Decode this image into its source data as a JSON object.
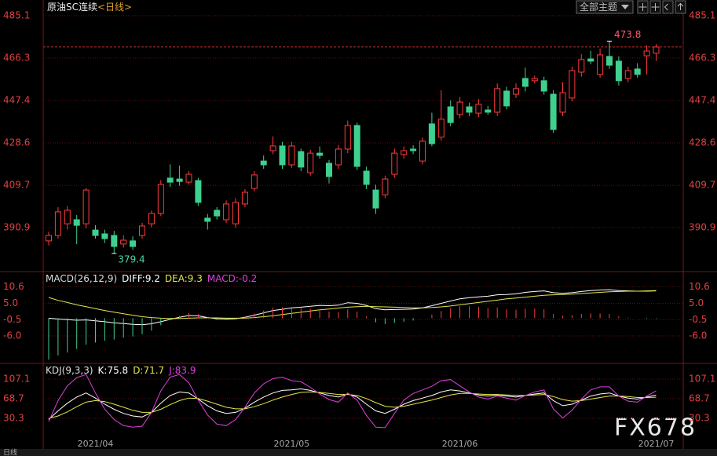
{
  "header": {
    "toolbar_button": "全部主题",
    "watermark": "FX678",
    "period_tab": "日线"
  },
  "chart_data": [
    {
      "type": "candlestick",
      "title": "原油SC连续",
      "subtitle": "<日线>",
      "categories": [
        null,
        null,
        null,
        null,
        null,
        "2021/04",
        null,
        null,
        null,
        null,
        null,
        null,
        null,
        null,
        null,
        null,
        null,
        null,
        null,
        null,
        null,
        null,
        null,
        null,
        null,
        null,
        "2021/05",
        null,
        null,
        null,
        null,
        null,
        null,
        null,
        null,
        null,
        null,
        null,
        null,
        null,
        null,
        null,
        null,
        null,
        "2021/06",
        null,
        null,
        null,
        null,
        null,
        null,
        null,
        null,
        null,
        null,
        null,
        null,
        null,
        null,
        null,
        null,
        null,
        null,
        null,
        null,
        "2021/07"
      ],
      "open": [
        385.0,
        387.4,
        392.6,
        394.4,
        392.6,
        389.8,
        388.1,
        387.4,
        383.6,
        385.0,
        387.4,
        392.6,
        397.2,
        412.9,
        412.5,
        411.1,
        411.8,
        395.1,
        398.6,
        394.4,
        392.6,
        401.4,
        408.3,
        420.5,
        425.1,
        427.2,
        418.8,
        424.7,
        415.3,
        424.0,
        419.5,
        418.8,
        425.8,
        436.3,
        416.0,
        407.6,
        405.5,
        414.6,
        423.4,
        425.8,
        420.5,
        437.0,
        431.1,
        444.6,
        441.2,
        444.6,
        441.8,
        443.2,
        442.2,
        451.6,
        450.2,
        457.2,
        456.2,
        456.2,
        450.2,
        442.2,
        448.5,
        460.0,
        465.9,
        459.0,
        467.0,
        464.9,
        457.2,
        461.4,
        467.3,
        468.4
      ],
      "high": [
        389.0,
        400.0,
        400.5,
        396.5,
        408.5,
        392.0,
        390.0,
        389.5,
        387.5,
        387.0,
        393.0,
        398.5,
        412.0,
        419.0,
        418.5,
        416.0,
        413.0,
        397.0,
        400.0,
        403.0,
        404.0,
        408.0,
        416.0,
        423.0,
        431.5,
        429.0,
        429.0,
        426.0,
        425.5,
        427.0,
        421.0,
        427.5,
        438.5,
        437.5,
        418.0,
        410.0,
        414.0,
        426.0,
        427.0,
        427.5,
        431.0,
        442.0,
        452.0,
        447.5,
        449.0,
        446.5,
        448.0,
        445.0,
        455.0,
        453.5,
        455.0,
        462.0,
        458.5,
        458.0,
        452.0,
        455.5,
        462.5,
        468.0,
        469.5,
        470.5,
        473.8,
        467.0,
        462.5,
        464.0,
        472.0,
        472.5
      ],
      "low": [
        383.0,
        386.0,
        390.0,
        383.5,
        390.5,
        386.0,
        384.0,
        379.4,
        382.0,
        381.0,
        386.0,
        391.0,
        396.0,
        409.0,
        409.5,
        410.0,
        400.5,
        390.0,
        394.5,
        393.0,
        391.0,
        400.0,
        407.0,
        417.0,
        423.5,
        417.0,
        417.5,
        416.0,
        414.0,
        421.5,
        410.5,
        417.0,
        424.0,
        416.5,
        408.0,
        397.0,
        404.0,
        413.0,
        421.5,
        423.5,
        419.0,
        427.0,
        429.5,
        436.0,
        439.5,
        440.5,
        440.0,
        441.0,
        440.5,
        443.5,
        448.5,
        451.5,
        455.0,
        450.0,
        433.0,
        440.5,
        447.0,
        458.0,
        463.5,
        457.5,
        461.5,
        454.0,
        455.5,
        457.5,
        459.0,
        465.0
      ],
      "close": [
        387.4,
        397.9,
        398.6,
        391.9,
        407.6,
        387.4,
        386.0,
        382.5,
        385.3,
        382.5,
        391.6,
        397.2,
        410.1,
        411.1,
        411.4,
        414.6,
        402.1,
        393.7,
        396.1,
        401.4,
        402.1,
        406.6,
        414.3,
        418.8,
        427.2,
        418.8,
        427.2,
        417.8,
        424.0,
        423.0,
        413.6,
        425.8,
        436.3,
        418.1,
        410.1,
        399.6,
        412.5,
        424.0,
        425.1,
        425.1,
        429.3,
        428.2,
        439.1,
        437.6,
        446.7,
        442.2,
        445.7,
        442.2,
        452.7,
        445.0,
        452.7,
        453.7,
        457.2,
        451.6,
        434.5,
        450.9,
        460.7,
        465.6,
        464.9,
        467.7,
        463.1,
        456.2,
        460.7,
        459.0,
        469.4,
        471.2
      ],
      "up_color": "#ff3b3b",
      "down_color": "#3fd08f",
      "ylim": [
        371.7,
        488.6
      ],
      "yticks": [
        485.1,
        466.3,
        447.4,
        428.6,
        409.7,
        390.9
      ],
      "grid": true,
      "last_price_line": true,
      "annotations": {
        "max": 473.8,
        "max_color": "#ff5a6a",
        "min": 379.4,
        "min_color": "#4fd8a8"
      }
    },
    {
      "type": "macd",
      "title": "MACD(26,12,9)",
      "series": [
        {
          "name": "DIFF:9.2",
          "color": "#ffffff",
          "style": "line",
          "values": [
            0.0,
            -0.3,
            -0.5,
            -0.7,
            -0.6,
            -0.9,
            -1.2,
            -1.6,
            -1.8,
            -2.1,
            -2.2,
            -1.9,
            -1.2,
            -0.4,
            0.3,
            0.9,
            0.8,
            0.2,
            -0.2,
            -0.3,
            -0.2,
            0.3,
            1.0,
            1.8,
            2.6,
            3.0,
            3.5,
            3.7,
            4.0,
            4.3,
            4.2,
            4.4,
            5.2,
            5.0,
            4.3,
            3.2,
            2.8,
            2.9,
            3.0,
            3.1,
            3.5,
            4.2,
            5.0,
            5.8,
            6.5,
            6.9,
            7.2,
            7.4,
            7.9,
            8.0,
            8.2,
            8.7,
            9.0,
            9.2,
            8.6,
            8.4,
            8.6,
            9.0,
            9.3,
            9.5,
            9.6,
            9.3,
            9.2,
            9.1,
            9.1,
            9.2
          ]
        },
        {
          "name": "DEA:9.3",
          "color": "#e6e64c",
          "style": "line",
          "values": [
            7.0,
            6.0,
            5.3,
            4.5,
            3.9,
            3.2,
            2.6,
            2.0,
            1.5,
            1.0,
            0.5,
            0.2,
            0.0,
            -0.1,
            -0.1,
            0.0,
            0.1,
            0.1,
            0.1,
            0.0,
            0.0,
            0.0,
            0.2,
            0.5,
            0.8,
            1.2,
            1.6,
            2.0,
            2.4,
            2.8,
            3.1,
            3.4,
            3.7,
            3.9,
            4.0,
            3.9,
            3.8,
            3.7,
            3.6,
            3.5,
            3.5,
            3.6,
            3.8,
            4.1,
            4.5,
            4.9,
            5.3,
            5.7,
            6.1,
            6.5,
            6.8,
            7.1,
            7.4,
            7.7,
            7.9,
            8.0,
            8.1,
            8.3,
            8.5,
            8.7,
            8.9,
            9.0,
            9.1,
            9.1,
            9.2,
            9.3
          ]
        },
        {
          "name": "MACD:-0.2",
          "color": "#e040e0",
          "style": "bar",
          "up_color": "#ff3b3b",
          "down_color": "#3fd08f",
          "values": [
            -14.0,
            -12.6,
            -11.6,
            -10.4,
            -9.0,
            -8.2,
            -7.6,
            -7.2,
            -6.6,
            -6.2,
            -5.4,
            -4.2,
            -2.4,
            -0.6,
            0.8,
            1.8,
            1.4,
            0.2,
            -0.6,
            -0.6,
            -0.4,
            0.6,
            1.6,
            2.6,
            3.6,
            3.6,
            3.8,
            3.4,
            3.2,
            3.0,
            2.2,
            2.0,
            3.0,
            2.2,
            0.6,
            -1.4,
            -2.0,
            -1.6,
            -1.2,
            -0.8,
            0.0,
            1.2,
            2.4,
            3.4,
            4.0,
            4.0,
            3.8,
            3.4,
            3.6,
            3.0,
            2.8,
            3.2,
            3.2,
            3.0,
            1.4,
            0.8,
            1.0,
            1.4,
            1.6,
            1.6,
            1.4,
            0.6,
            0.2,
            0.0,
            -0.2,
            -0.2
          ]
        }
      ],
      "ylim": [
        -15,
        15.2
      ],
      "yticks": [
        10.6,
        {
          "value": 5,
          "label": "5.0"
        },
        -0.5,
        {
          "value": -6,
          "label": "-6.0"
        }
      ],
      "grid": true
    },
    {
      "type": "kdj",
      "title": "KDJ(9,3,3)",
      "series": [
        {
          "name": "K:75.8",
          "color": "#ffffff",
          "style": "line",
          "values": [
            28,
            45,
            60,
            72,
            80,
            70,
            58,
            48,
            40,
            35,
            33,
            42,
            60,
            75,
            82,
            80,
            68,
            55,
            45,
            40,
            42,
            50,
            62,
            72,
            80,
            85,
            86,
            88,
            85,
            80,
            75,
            72,
            78,
            72,
            58,
            45,
            40,
            48,
            58,
            65,
            70,
            75,
            82,
            86,
            84,
            80,
            76,
            74,
            76,
            74,
            72,
            75,
            78,
            80,
            65,
            55,
            58,
            66,
            74,
            78,
            80,
            74,
            70,
            68,
            72,
            75.8
          ]
        },
        {
          "name": "D:71.7",
          "color": "#e6e64c",
          "style": "line",
          "values": [
            30,
            35,
            43,
            53,
            62,
            65,
            63,
            58,
            52,
            46,
            42,
            42,
            48,
            57,
            65,
            70,
            69,
            64,
            58,
            52,
            49,
            49,
            53,
            59,
            66,
            72,
            77,
            81,
            82,
            81,
            79,
            77,
            77,
            75,
            69,
            61,
            54,
            52,
            54,
            58,
            62,
            66,
            71,
            76,
            79,
            79,
            78,
            77,
            77,
            76,
            75,
            75,
            76,
            77,
            73,
            67,
            64,
            65,
            68,
            71,
            74,
            74,
            73,
            71,
            71,
            71.7
          ]
        },
        {
          "name": "J:83.9",
          "color": "#e040e0",
          "style": "line",
          "values": [
            24,
            65,
            94,
            110,
            116,
            80,
            48,
            28,
            16,
            13,
            15,
            42,
            84,
            111,
            116,
            100,
            66,
            37,
            19,
            16,
            28,
            52,
            80,
            98,
            108,
            111,
            104,
            102,
            91,
            78,
            67,
            62,
            80,
            66,
            36,
            13,
            12,
            40,
            66,
            79,
            86,
            93,
            104,
            106,
            94,
            82,
            72,
            68,
            74,
            70,
            66,
            75,
            82,
            86,
            49,
            31,
            46,
            68,
            86,
            92,
            92,
            74,
            64,
            62,
            74,
            83.9
          ]
        }
      ],
      "ylim": [
        -26.5,
        134.8
      ],
      "yticks": [
        107.1,
        68.7,
        30.3
      ],
      "grid": true
    }
  ]
}
